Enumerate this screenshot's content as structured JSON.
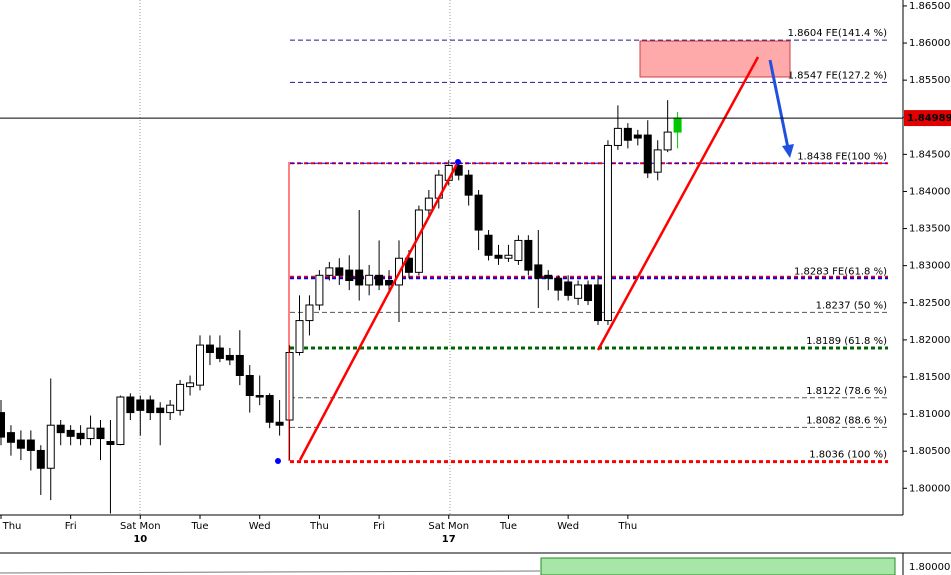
{
  "chart_data": {
    "type": "candlestick",
    "categories": [
      "Thu",
      null,
      null,
      null,
      null,
      null,
      null,
      "Fri",
      null,
      null,
      null,
      null,
      null,
      null,
      "Sat Mon",
      null,
      null,
      null,
      null,
      null,
      "Tue",
      null,
      null,
      null,
      null,
      null,
      "Wed",
      null,
      null,
      null,
      null,
      null,
      "Thu",
      null,
      null,
      null,
      null,
      null,
      "Fri",
      null,
      null,
      null,
      null,
      null,
      null,
      "Sat Mon",
      null,
      null,
      null,
      null,
      null,
      "Tue",
      null,
      null,
      null,
      null,
      null,
      "Wed",
      null,
      null,
      null,
      null,
      null,
      "Thu",
      null,
      null,
      null,
      null,
      null
    ],
    "dates": [
      null,
      null,
      null,
      null,
      null,
      null,
      null,
      null,
      null,
      null,
      null,
      null,
      null,
      null,
      "10",
      null,
      null,
      null,
      null,
      null,
      null,
      null,
      null,
      null,
      null,
      null,
      null,
      null,
      null,
      null,
      null,
      null,
      null,
      null,
      null,
      null,
      null,
      null,
      null,
      null,
      null,
      null,
      null,
      null,
      null,
      "17",
      null,
      null,
      null,
      null,
      null,
      null,
      null,
      null,
      null,
      null,
      null,
      null,
      null,
      null,
      null,
      null,
      null,
      null,
      null,
      null,
      null,
      null,
      null
    ],
    "open": [
      1.8102,
      1.8075,
      1.8065,
      1.8065,
      1.8051,
      1.8027,
      1.8085,
      1.8078,
      1.8074,
      1.8067,
      1.8081,
      1.8063,
      1.8059,
      1.8123,
      1.8119,
      1.8119,
      1.8108,
      1.8102,
      1.8105,
      1.8137,
      1.8139,
      1.8193,
      1.8189,
      1.8179,
      1.8179,
      1.8152,
      1.8125,
      1.8125,
      1.8089,
      1.8092,
      1.8183,
      1.8226,
      1.8247,
      1.8287,
      1.8297,
      1.8294,
      1.8294,
      1.8274,
      1.8287,
      1.828,
      1.8274,
      1.831,
      1.8291,
      1.8375,
      1.8391,
      1.8415,
      1.8435,
      1.8422,
      1.8395,
      1.8341,
      1.8314,
      1.831,
      1.8307,
      1.8334,
      1.8301,
      1.8287,
      1.8283,
      1.8278,
      1.8256,
      1.8274,
      1.8274,
      1.8226,
      1.8462,
      1.8485,
      1.8476,
      1.8476,
      1.8426,
      1.8456,
      1.848
    ],
    "high": [
      1.8119,
      1.8085,
      1.8078,
      1.8078,
      1.8058,
      1.8148,
      1.8092,
      1.8085,
      1.8085,
      1.8098,
      1.8092,
      1.8092,
      1.8125,
      1.8128,
      1.8125,
      1.8125,
      1.8116,
      1.8119,
      1.8146,
      1.8152,
      1.8206,
      1.8206,
      1.8206,
      1.8189,
      1.8213,
      1.8166,
      1.8152,
      1.8128,
      1.8119,
      1.8193,
      1.826,
      1.826,
      1.8294,
      1.8305,
      1.831,
      1.8314,
      1.8375,
      1.8301,
      1.8334,
      1.8294,
      1.8334,
      1.8321,
      1.8381,
      1.8402,
      1.8429,
      1.8442,
      1.8442,
      1.8429,
      1.8402,
      1.8348,
      1.8328,
      1.8328,
      1.8341,
      1.8341,
      1.8348,
      1.8294,
      1.8287,
      1.8287,
      1.828,
      1.828,
      1.8287,
      1.8469,
      1.8516,
      1.8492,
      1.8483,
      1.8496,
      1.8469,
      1.8523,
      1.8507
    ],
    "low": [
      1.8058,
      1.8044,
      1.8038,
      1.8024,
      1.7991,
      1.7984,
      1.8058,
      1.8058,
      1.8058,
      1.8058,
      1.8038,
      1.7966,
      1.8058,
      1.8092,
      1.8071,
      1.8092,
      1.8058,
      1.8092,
      1.8098,
      1.8125,
      1.8132,
      1.8166,
      1.817,
      1.8166,
      1.8139,
      1.8102,
      1.8112,
      1.8081,
      1.8071,
      1.8038,
      1.8179,
      1.8206,
      1.824,
      1.828,
      1.8274,
      1.8267,
      1.8253,
      1.826,
      1.8267,
      1.8267,
      1.8224,
      1.8283,
      1.8287,
      1.8368,
      1.8377,
      1.8408,
      1.8415,
      1.8381,
      1.8321,
      1.8307,
      1.8301,
      1.8305,
      1.8301,
      1.8287,
      1.8243,
      1.8267,
      1.8253,
      1.8253,
      1.8247,
      1.8247,
      1.822,
      1.822,
      1.8456,
      1.8458,
      1.8462,
      1.8418,
      1.8415,
      1.8453,
      1.8458
    ],
    "close": [
      1.8069,
      1.8062,
      1.8054,
      1.8051,
      1.8027,
      1.8085,
      1.8075,
      1.807,
      1.8067,
      1.8081,
      1.8067,
      1.8059,
      1.8123,
      1.8102,
      1.8105,
      1.8102,
      1.8102,
      1.8112,
      1.814,
      1.8142,
      1.8193,
      1.8183,
      1.8175,
      1.8173,
      1.8152,
      1.8125,
      1.8123,
      1.8089,
      1.8085,
      1.8183,
      1.8226,
      1.8247,
      1.8287,
      1.8297,
      1.8287,
      1.828,
      1.8274,
      1.8287,
      1.8274,
      1.8274,
      1.831,
      1.8291,
      1.8375,
      1.8391,
      1.8422,
      1.8435,
      1.8422,
      1.8395,
      1.8348,
      1.8314,
      1.831,
      1.8314,
      1.8334,
      1.8294,
      1.8283,
      1.8283,
      1.8267,
      1.826,
      1.8274,
      1.8253,
      1.8226,
      1.8462,
      1.8485,
      1.8469,
      1.8472,
      1.8425,
      1.8456,
      1.848,
      1.84989
    ],
    "bull_color": "#ffffff",
    "bear_color": "#000000",
    "last_color": "#00c800",
    "ylim": [
      1.7964,
      1.8658
    ],
    "yticks": [
      {
        "value": 1.865,
        "label": "1.86500"
      },
      {
        "value": 1.86,
        "label": "1.86000"
      },
      {
        "value": 1.855,
        "label": "1.85500"
      },
      {
        "value": 1.85,
        "label": "1.85000"
      },
      {
        "value": 1.845,
        "label": "1.84500"
      },
      {
        "value": 1.84,
        "label": "1.84000"
      },
      {
        "value": 1.835,
        "label": "1.83500"
      },
      {
        "value": 1.83,
        "label": "1.83000"
      },
      {
        "value": 1.825,
        "label": "1.82500"
      },
      {
        "value": 1.82,
        "label": "1.82000"
      },
      {
        "value": 1.815,
        "label": "1.81500"
      },
      {
        "value": 1.81,
        "label": "1.81000"
      },
      {
        "value": 1.805,
        "label": "1.80500"
      },
      {
        "value": 1.8,
        "label": "1.80000"
      }
    ],
    "current_price": 1.84989,
    "current_color": "#e00000",
    "levels": [
      {
        "value": 1.8604,
        "label": "1.8604 FE(141.4 %)",
        "color": "#1a1a8c",
        "width": 1
      },
      {
        "value": 1.8547,
        "label": "1.8547 FE(127.2 %)",
        "color": "#1a1a8c",
        "width": 1
      },
      {
        "value": 1.8438,
        "color": "#ff0000",
        "width": 2
      },
      {
        "value": 1.8438,
        "label": "1.8438 FE(100 %)",
        "color": "#0000ff",
        "width": 1
      },
      {
        "value": 1.8285,
        "color": "#ff0000",
        "width": 2
      },
      {
        "value": 1.8283,
        "label": "1.8283 FE(61.8 %)",
        "color": "#0000ff",
        "width": 2
      },
      {
        "value": 1.8237,
        "label": "1.8237 (50 %)",
        "color": "#555555",
        "width": 1
      },
      {
        "value": 1.8189,
        "label": "1.8189 (61.8 %)",
        "color": "#006400",
        "width": 3
      },
      {
        "value": 1.8122,
        "label": "1.8122 (78.6 %)",
        "color": "#555555",
        "width": 1
      },
      {
        "value": 1.8082,
        "label": "1.8082 (88.6 %)",
        "color": "#555555",
        "width": 1
      },
      {
        "value": 1.8036,
        "label": "1.8036 (100 %)",
        "color": "#ff0000",
        "width": 3
      }
    ],
    "indicator_label": "1.80000"
  }
}
